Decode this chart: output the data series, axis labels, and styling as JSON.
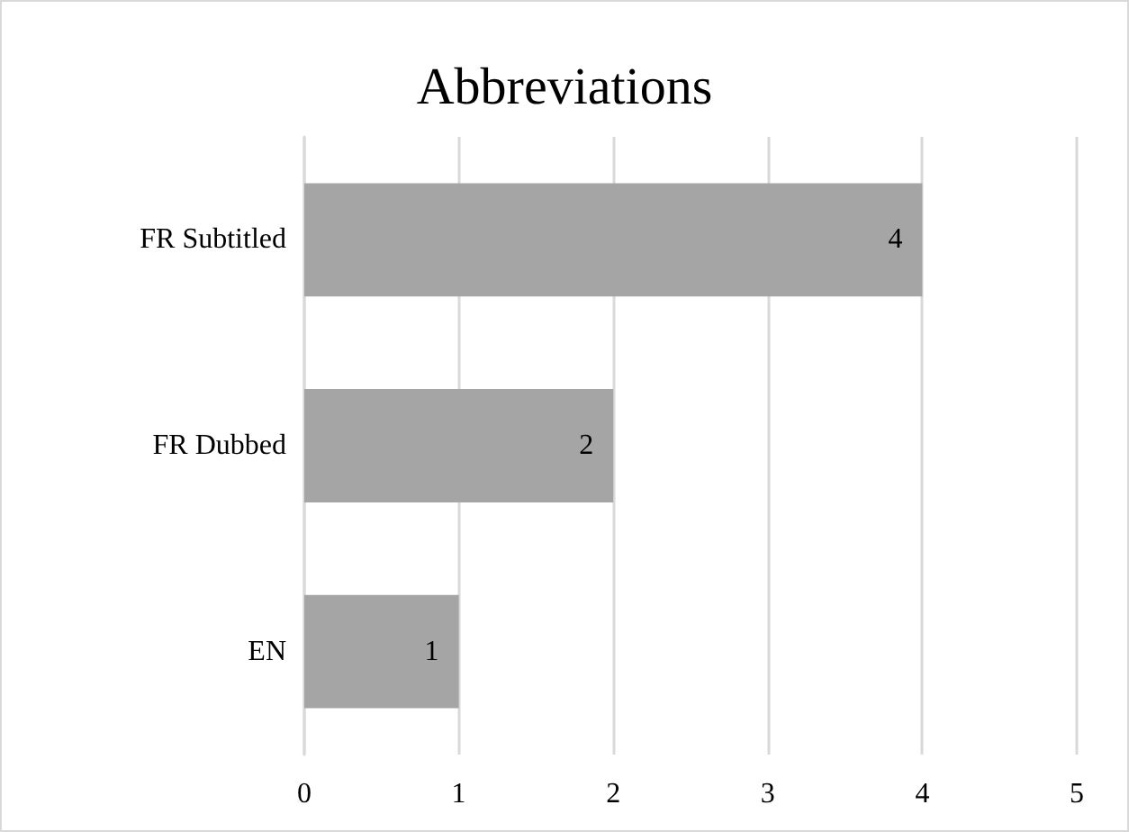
{
  "chart_data": {
    "type": "bar",
    "title": "Abbreviations",
    "orientation": "horizontal",
    "categories": [
      "FR Subtitled",
      "FR Dubbed",
      "EN"
    ],
    "values": [
      4,
      2,
      1
    ],
    "color": "#a5a5a5",
    "xlim": [
      0,
      5
    ],
    "xticks": [
      0,
      1,
      2,
      3,
      4,
      5
    ],
    "grid": "x",
    "data_labels": true
  }
}
